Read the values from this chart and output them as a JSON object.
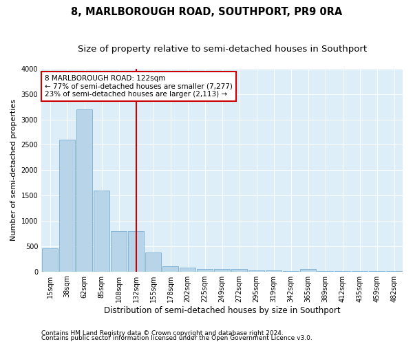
{
  "title": "8, MARLBOROUGH ROAD, SOUTHPORT, PR9 0RA",
  "subtitle": "Size of property relative to semi-detached houses in Southport",
  "xlabel": "Distribution of semi-detached houses by size in Southport",
  "ylabel": "Number of semi-detached properties",
  "footnote1": "Contains HM Land Registry data © Crown copyright and database right 2024.",
  "footnote2": "Contains public sector information licensed under the Open Government Licence v3.0.",
  "categories": [
    "15sqm",
    "38sqm",
    "62sqm",
    "85sqm",
    "108sqm",
    "132sqm",
    "155sqm",
    "178sqm",
    "202sqm",
    "225sqm",
    "249sqm",
    "272sqm",
    "295sqm",
    "319sqm",
    "342sqm",
    "365sqm",
    "389sqm",
    "412sqm",
    "435sqm",
    "459sqm",
    "482sqm"
  ],
  "values": [
    450,
    2600,
    3200,
    1600,
    800,
    800,
    380,
    100,
    70,
    55,
    50,
    45,
    20,
    15,
    10,
    55,
    10,
    8,
    5,
    5,
    5
  ],
  "bar_color": "#b8d4e8",
  "bar_edge_color": "#7aafd4",
  "vline_x_index": 5.0,
  "vline_color": "#cc0000",
  "annotation_box_color": "#cc0000",
  "annotation_lines": [
    "8 MARLBOROUGH ROAD: 122sqm",
    "← 77% of semi-detached houses are smaller (7,277)",
    "23% of semi-detached houses are larger (2,113) →"
  ],
  "ylim": [
    0,
    4000
  ],
  "yticks": [
    0,
    500,
    1000,
    1500,
    2000,
    2500,
    3000,
    3500,
    4000
  ],
  "plot_bg_color": "#ddeef8",
  "grid_color": "#ffffff",
  "title_fontsize": 10.5,
  "subtitle_fontsize": 9.5,
  "xlabel_fontsize": 8.5,
  "ylabel_fontsize": 8,
  "tick_fontsize": 7,
  "annotation_fontsize": 7.5,
  "footnote_fontsize": 6.5
}
